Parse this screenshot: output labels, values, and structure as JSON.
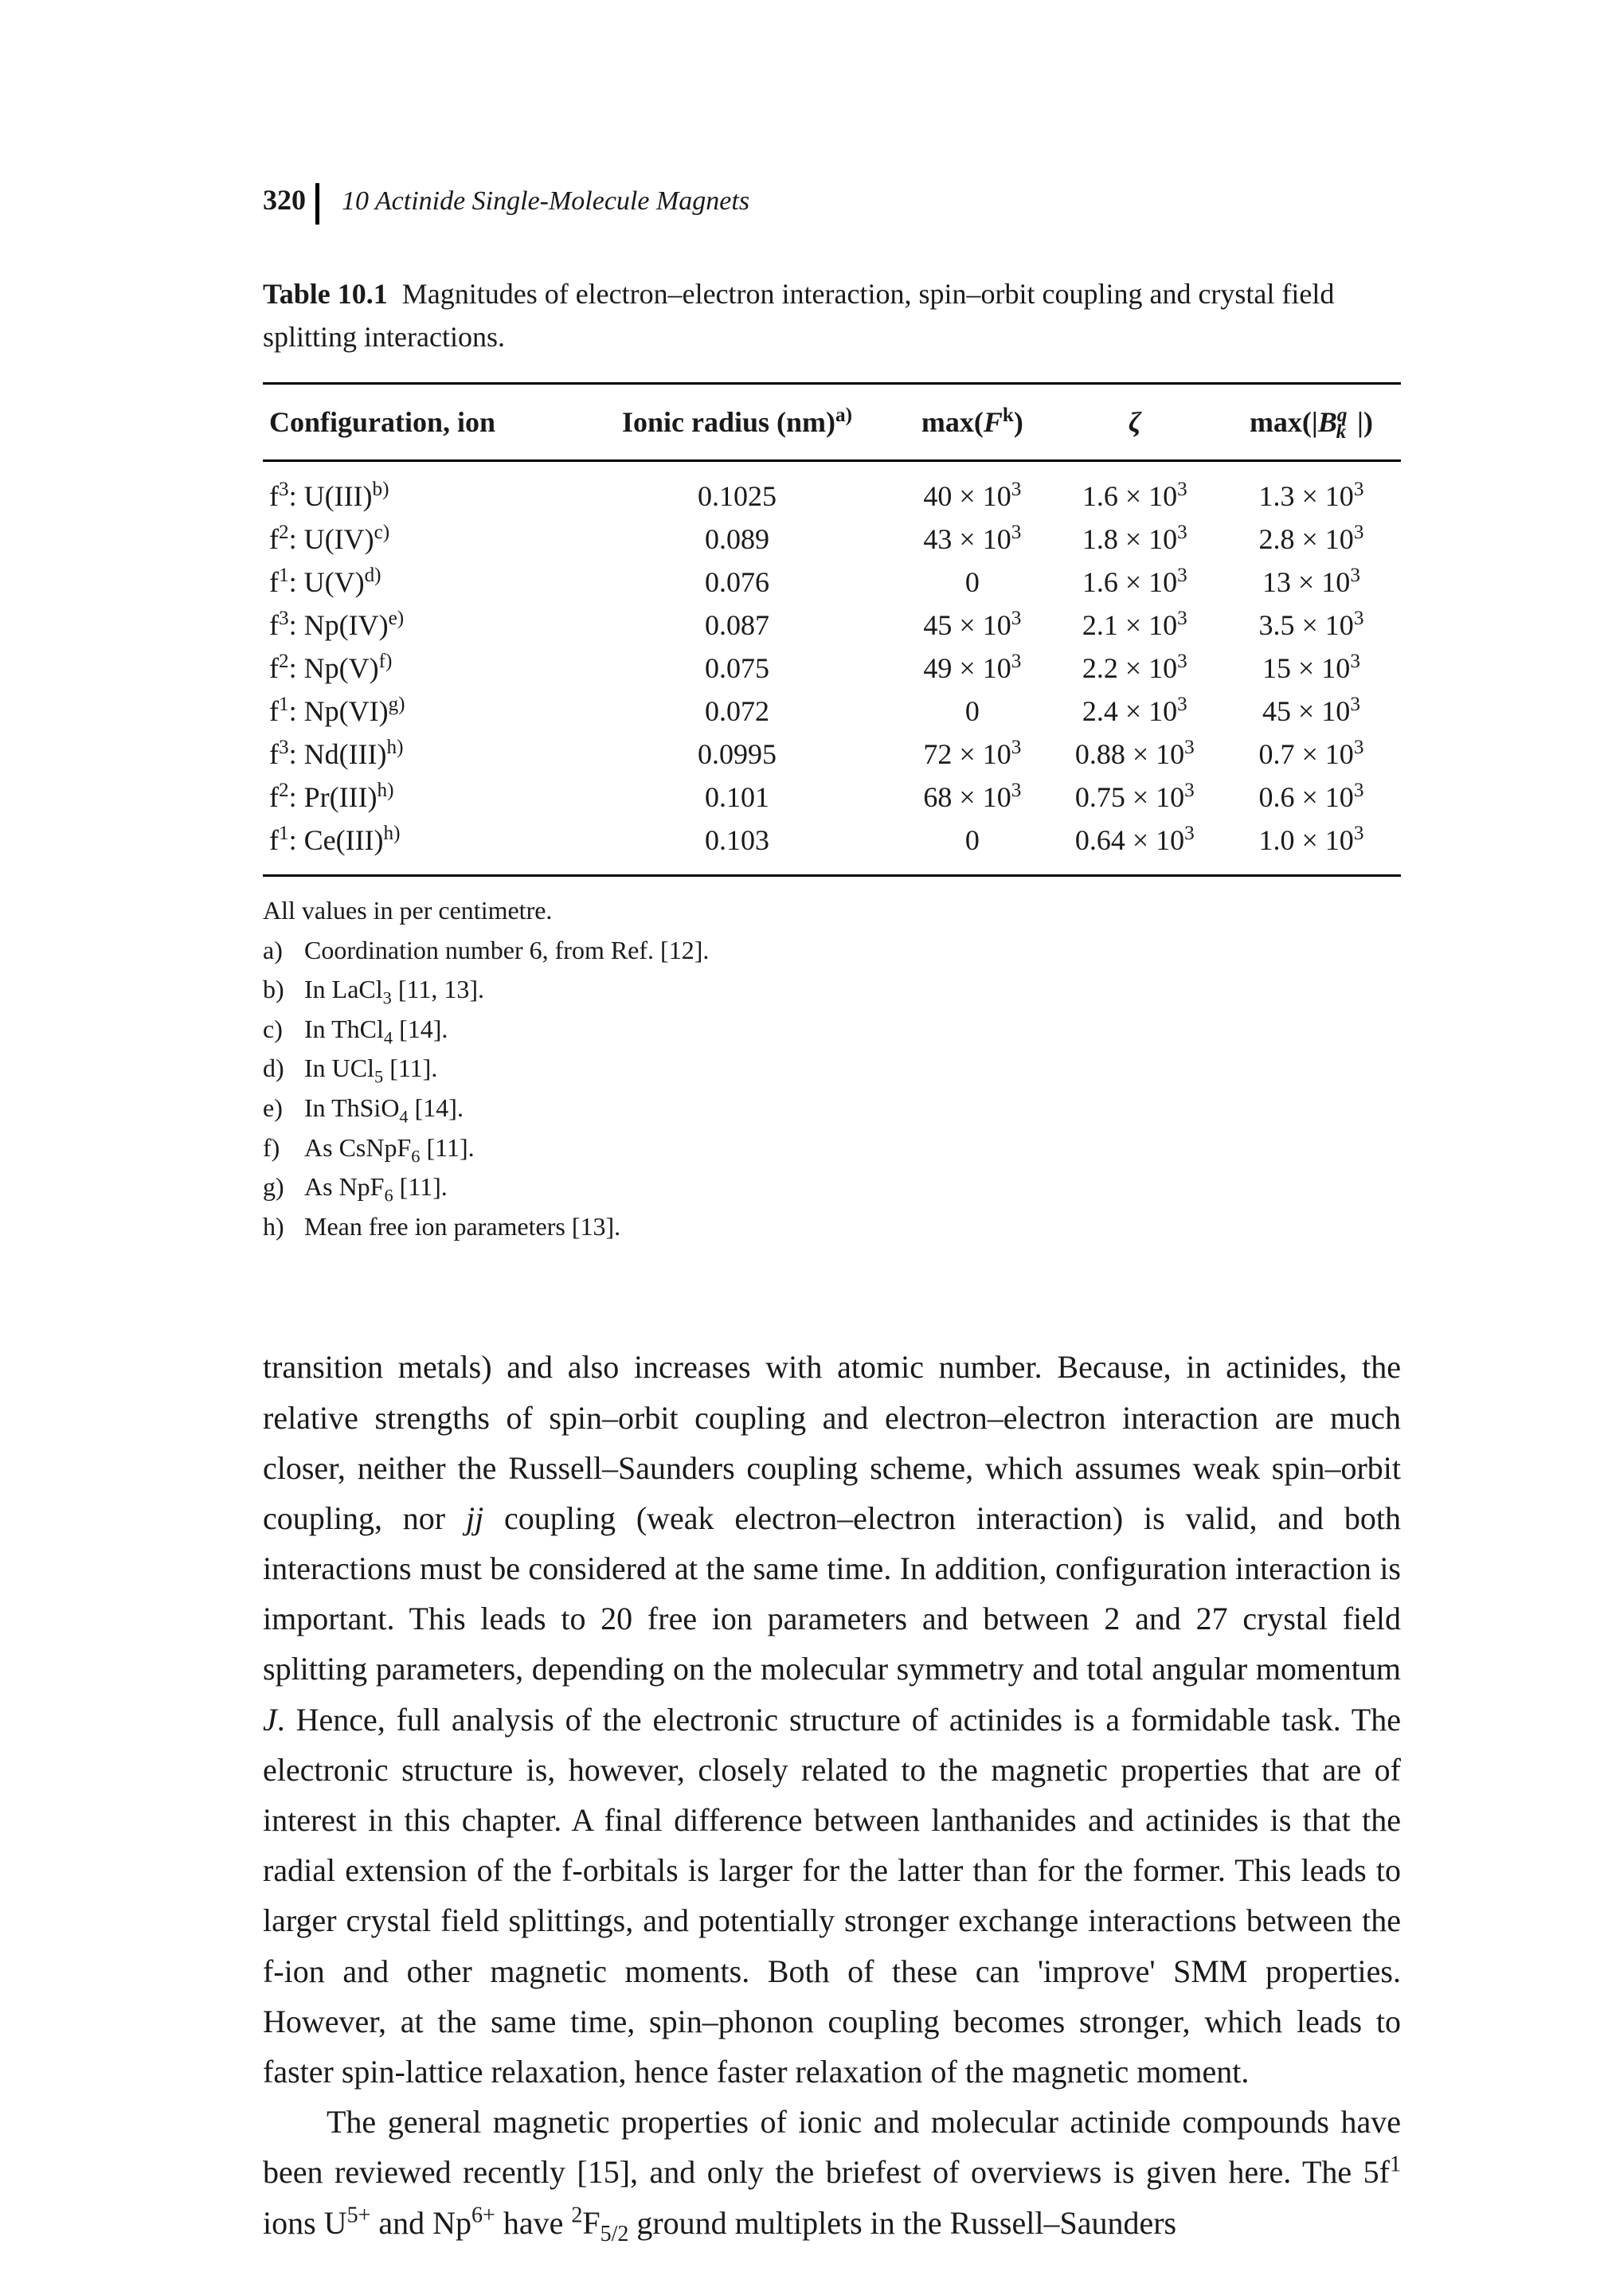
{
  "page_number": "320",
  "chapter_title": "10   Actinide Single-Molecule Magnets",
  "table": {
    "caption_label": "Table 10.1",
    "caption_text": "Magnitudes of electron–electron interaction, spin–orbit coupling and crystal field splitting interactions.",
    "columns": [
      "Configuration, ion",
      "Ionic radius (nm)<sup>a)</sup>",
      "max(<i>F</i><sup>k</sup>)",
      "<i>ζ</i>",
      "max(|<i>B</i><sup><i>q</i></sup><sub style=\"position:relative;left:-0.55em;\"><i>k</i></sub>|)"
    ],
    "rows": [
      [
        "f<sup>3</sup>: U(III)<sup>b)</sup>",
        "0.1025",
        "40 × 10<sup>3</sup>",
        "1.6 × 10<sup>3</sup>",
        "1.3 × 10<sup>3</sup>"
      ],
      [
        "f<sup>2</sup>: U(IV)<sup>c)</sup>",
        "0.089",
        "43 × 10<sup>3</sup>",
        "1.8 × 10<sup>3</sup>",
        "2.8 × 10<sup>3</sup>"
      ],
      [
        "f<sup>1</sup>: U(V)<sup>d)</sup>",
        "0.076",
        "0",
        "1.6 × 10<sup>3</sup>",
        "13 × 10<sup>3</sup>"
      ],
      [
        "f<sup>3</sup>: Np(IV)<sup>e)</sup>",
        "0.087",
        "45 × 10<sup>3</sup>",
        "2.1 × 10<sup>3</sup>",
        "3.5 × 10<sup>3</sup>"
      ],
      [
        "f<sup>2</sup>: Np(V)<sup>f)</sup>",
        "0.075",
        "49 × 10<sup>3</sup>",
        "2.2 × 10<sup>3</sup>",
        "15 × 10<sup>3</sup>"
      ],
      [
        "f<sup>1</sup>: Np(VI)<sup>g)</sup>",
        "0.072",
        "0",
        "2.4 × 10<sup>3</sup>",
        "45 × 10<sup>3</sup>"
      ],
      [
        "f<sup>3</sup>: Nd(III)<sup>h)</sup>",
        "0.0995",
        "72 × 10<sup>3</sup>",
        "0.88 × 10<sup>3</sup>",
        "0.7 × 10<sup>3</sup>"
      ],
      [
        "f<sup>2</sup>: Pr(III)<sup>h)</sup>",
        "0.101",
        "68 × 10<sup>3</sup>",
        "0.75 × 10<sup>3</sup>",
        "0.6 × 10<sup>3</sup>"
      ],
      [
        "f<sup>1</sup>: Ce(III)<sup>h)</sup>",
        "0.103",
        "0",
        "0.64 × 10<sup>3</sup>",
        "1.0 × 10<sup>3</sup>"
      ]
    ]
  },
  "footnotes": [
    {
      "label": "",
      "text": "All values in per centimetre."
    },
    {
      "label": "a)",
      "text": "Coordination number 6, from Ref. [12]."
    },
    {
      "label": "b)",
      "text": "In LaCl<sub>3</sub> [11, 13]."
    },
    {
      "label": "c)",
      "text": "In ThCl<sub>4</sub> [14]."
    },
    {
      "label": "d)",
      "text": "In UCl<sub>5</sub> [11]."
    },
    {
      "label": "e)",
      "text": "In ThSiO<sub>4</sub> [14]."
    },
    {
      "label": "f)",
      "text": "As CsNpF<sub>6</sub> [11]."
    },
    {
      "label": "g)",
      "text": "As NpF<sub>6</sub> [11]."
    },
    {
      "label": "h)",
      "text": "Mean free ion parameters [13]."
    }
  ],
  "paragraphs": [
    "transition metals) and also increases with atomic number. Because, in actinides, the relative strengths of spin–orbit coupling and electron–electron interaction are much closer, neither the Russell–Saunders coupling scheme, which assumes weak spin–orbit coupling, nor <i>jj</i> coupling (weak electron–electron interaction) is valid, and both interactions must be considered at the same time. In addition, configuration interaction is important. This leads to 20 free ion parameters and between 2 and 27 crystal field splitting parameters, depending on the molecular symmetry and total angular momentum <i>J</i>. Hence, full analysis of the electronic structure of actinides is a formidable task. The electronic structure is, however, closely related to the magnetic properties that are of interest in this chapter. A final difference between lanthanides and actinides is that the radial extension of the f-orbitals is larger for the latter than for the former. This leads to larger crystal field splittings, and potentially stronger exchange interactions between the f-ion and other magnetic moments. Both of these can 'improve' SMM properties. However, at the same time, spin–phonon coupling becomes stronger, which leads to faster spin-lattice relaxation, hence faster relaxation of the magnetic moment.",
    "The general magnetic properties of ionic and molecular actinide compounds have been reviewed recently [15], and only the briefest of overviews is given here. The 5f<sup>1</sup> ions U<sup>5+</sup> and Np<sup>6+</sup> have <sup>2</sup>F<sub>5/2</sub> ground multiplets in the Russell–Saunders"
  ]
}
